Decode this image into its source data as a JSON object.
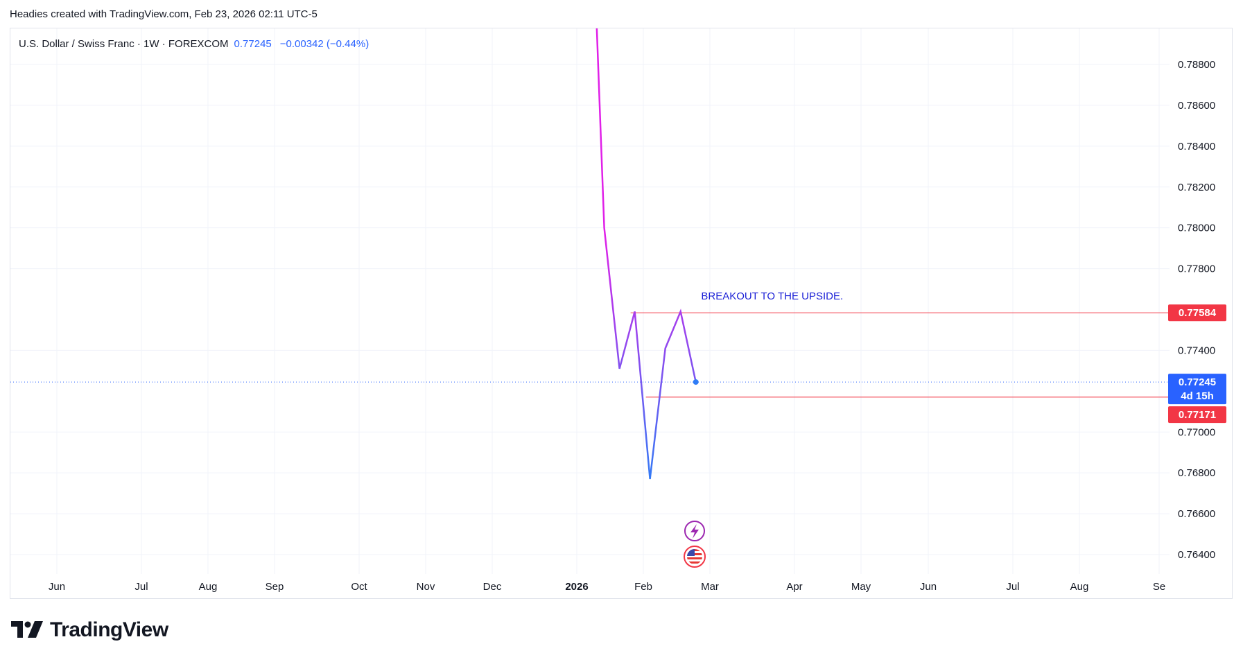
{
  "header": {
    "caption": "Headies created with TradingView.com, Feb 23, 2026 02:11 UTC-5"
  },
  "legend": {
    "symbol": "U.S. Dollar / Swiss Franc · 1W · FOREXCOM",
    "last": "0.77245",
    "change": "−0.00342 (−0.44%)"
  },
  "colors": {
    "line_start": "#e020e8",
    "line_end": "#2f7cf6",
    "level_line": "#f23645",
    "current_badge": "#2962ff",
    "level_badge": "#f23645",
    "annotation": "#1a1fd6"
  },
  "chart_data": {
    "type": "line",
    "grid": true,
    "legend_placement": "top-left",
    "x_ticks": [
      "Jun",
      "Jul",
      "Aug",
      "Sep",
      "Oct",
      "Nov",
      "Dec",
      "2026",
      "Feb",
      "Mar",
      "Apr",
      "May",
      "Jun",
      "Jul",
      "Aug",
      "Se"
    ],
    "y_ticks": [
      "0.78800",
      "0.78600",
      "0.78400",
      "0.78200",
      "0.78000",
      "0.77800",
      "0.77400",
      "0.77000",
      "0.76800",
      "0.76600",
      "0.76400"
    ],
    "ylim": [
      0.7632,
      0.7904
    ],
    "series": [
      {
        "x": [
          "2025-12-15",
          "2025-12-22",
          "2025-12-29",
          "2026-01-05",
          "2026-01-12",
          "2026-01-19",
          "2026-01-26",
          "2026-02-02",
          "2026-02-09",
          "2026-02-16",
          "2026-02-23"
        ],
        "values": [
          0.79,
          0.79,
          0.8,
          0.8,
          0.78,
          0.7731,
          0.7759,
          0.7677,
          0.7741,
          0.7759,
          0.77245
        ]
      }
    ],
    "last_point": {
      "x": "2026-02-23",
      "y": 0.77245
    },
    "levels": [
      {
        "value": 0.77584,
        "label": "0.77584",
        "start": "2026-01-26"
      },
      {
        "value": 0.77171,
        "label": "0.77171",
        "start": "2026-02-02"
      }
    ],
    "current_price": {
      "value": 0.77245,
      "label": "0.77245",
      "countdown": "4d 15h"
    },
    "annotations": [
      {
        "text": "BREAKOUT TO THE UPSIDE.",
        "x": "2026-03-30",
        "y": 0.7765
      }
    ]
  },
  "footer": {
    "logo_text": "TradingView"
  }
}
